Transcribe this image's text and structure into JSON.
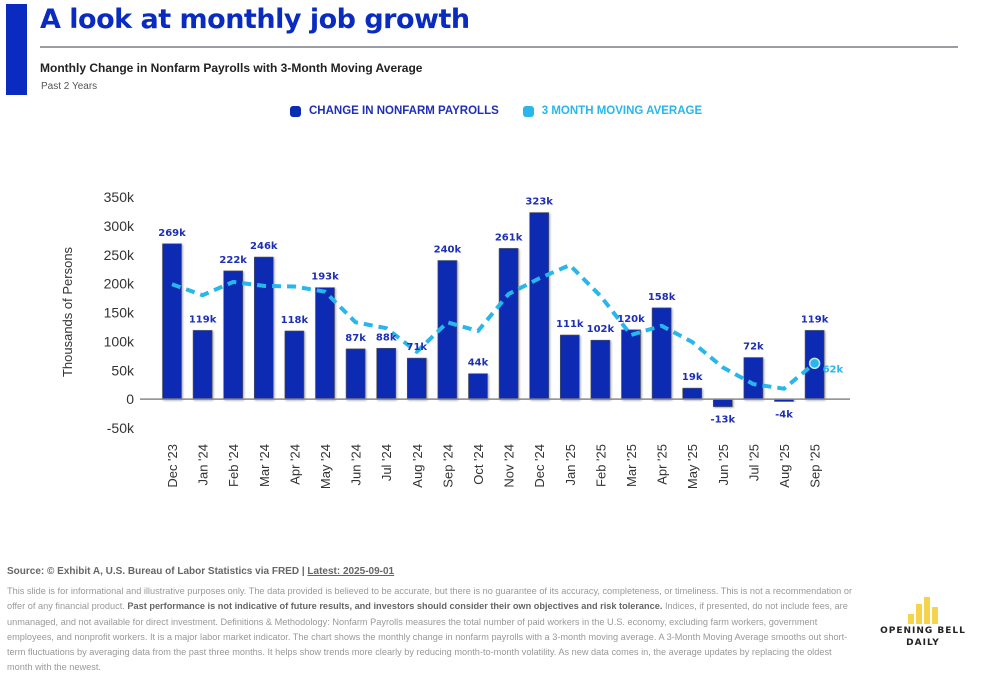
{
  "header": {
    "title": "A look at monthly job growth",
    "subtitle": "Monthly Change in Nonfarm Payrolls with 3-Month Moving Average",
    "period": "Past 2 Years"
  },
  "colors": {
    "brand_blue": "#0a2bbf",
    "bar_blue": "#0a2bb3",
    "moving_avg": "#29b6ea",
    "logo_yellow": "#f5d34a"
  },
  "chart_data": {
    "type": "bar",
    "title": "Monthly Change in Nonfarm Payrolls with 3-Month Moving Average",
    "xlabel": "",
    "ylabel": "Thousands of Persons",
    "ylim": [
      -50,
      350
    ],
    "yticks": [
      350,
      300,
      250,
      200,
      150,
      100,
      50,
      0,
      -50
    ],
    "ytick_labels": [
      "350k",
      "300k",
      "250k",
      "200k",
      "150k",
      "100k",
      "50k",
      "0",
      "-50k"
    ],
    "grid": false,
    "legend_position": "top-center",
    "categories": [
      "Dec '23",
      "Jan '24",
      "Feb '24",
      "Mar '24",
      "Apr '24",
      "May '24",
      "Jun '24",
      "Jul '24",
      "Aug '24",
      "Sep '24",
      "Oct '24",
      "Nov '24",
      "Dec '24",
      "Jan '25",
      "Feb '25",
      "Mar '25",
      "Apr '25",
      "May '25",
      "Jun '25",
      "Jul '25",
      "Aug '25",
      "Sep '25"
    ],
    "series": [
      {
        "name": "CHANGE IN NONFARM PAYROLLS",
        "type": "bar",
        "values": [
          269,
          119,
          222,
          246,
          118,
          193,
          87,
          88,
          71,
          240,
          44,
          261,
          323,
          111,
          102,
          120,
          158,
          19,
          -13,
          72,
          -4,
          119
        ],
        "labels": [
          "269k",
          "119k",
          "222k",
          "246k",
          "118k",
          "193k",
          "87k",
          "88k",
          "71k",
          "240k",
          "44k",
          "261k",
          "323k",
          "111k",
          "102k",
          "120k",
          "158k",
          "19k",
          "-13k",
          "72k",
          "-4k",
          "119k"
        ]
      },
      {
        "name": "3 MONTH MOVING AVERAGE",
        "type": "line",
        "style": "dashed",
        "values": [
          199,
          180,
          203,
          196,
          195,
          186,
          133,
          123,
          82,
          133,
          118,
          182,
          209,
          232,
          179,
          111,
          127,
          99,
          55,
          26,
          18,
          62
        ],
        "end_label": "62k"
      }
    ]
  },
  "footer": {
    "source": "Source: © Exhibit A, U.S. Bureau of Labor Statistics via FRED | ",
    "latest": "Latest: 2025-09-01",
    "disclaimer_1": "This slide is for informational and illustrative purposes only. The data provided is believed to be accurate, but there is no guarantee of its accuracy, completeness, or timeliness. This is not a recommendation or offer of any financial product. ",
    "disclaimer_bold": "Past performance is not indicative of future results, and investors should consider their own objectives and risk tolerance.",
    "disclaimer_2": " Indices, if presented, do not include fees, are unmanaged, and not available for direct investment. Definitions & Methodology: Nonfarm Payrolls measures the total number of paid workers in the U.S. economy, excluding farm workers, government employees, and nonprofit workers. It is a major labor market indicator. The chart shows the monthly change in nonfarm payrolls with a 3-month moving average. A 3-Month Moving Average smooths out short-term fluctuations by averaging data from the past three months. It helps show trends more clearly by reducing month-to-month volatility. As new data comes in, the average updates by replacing the oldest month with the newest."
  },
  "logo": {
    "line1": "OPENING BELL",
    "line2": "DAILY"
  }
}
